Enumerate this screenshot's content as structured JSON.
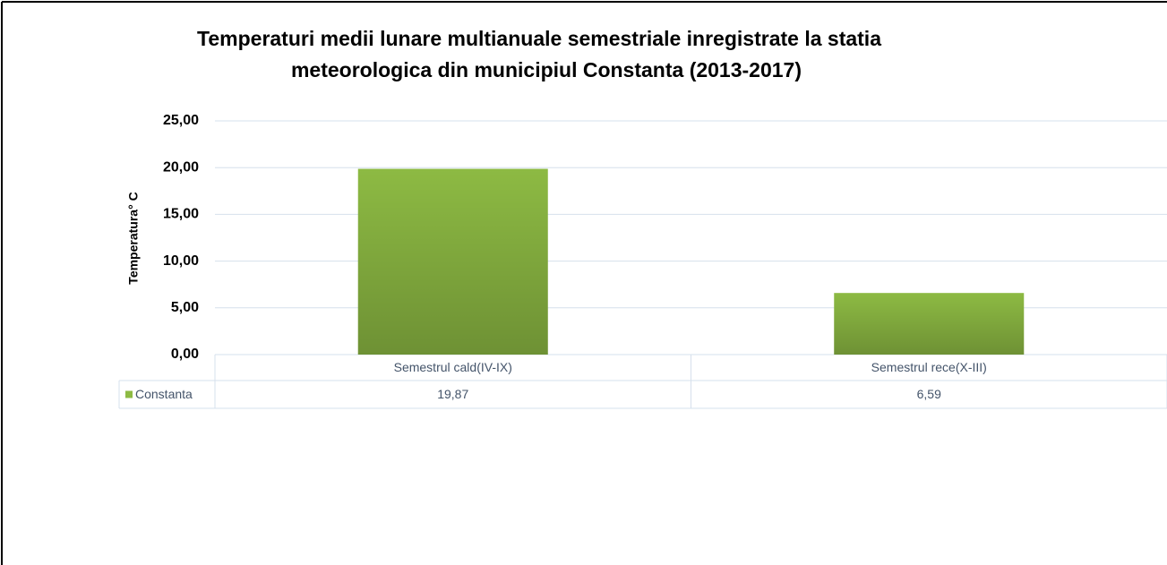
{
  "chart_data": {
    "type": "bar",
    "title": [
      "Temperaturi medii lunare multianuale semestriale inregistrate la statia",
      "meteorologica din municipiul Constanta (2013-2017)"
    ],
    "y_label": "Temperatura° C",
    "categories": [
      "Semestrul cald(IV-IX)",
      "Semestrul rece(X-III)"
    ],
    "series": [
      {
        "name": "Constanta",
        "color": "#8dba43",
        "values": [
          19.87,
          6.59
        ],
        "value_labels": [
          "19,87",
          "6,59"
        ]
      }
    ],
    "ylim": [
      0,
      25
    ],
    "yticks": [
      {
        "value": 0,
        "label": "0,00"
      },
      {
        "value": 5,
        "label": "5,00"
      },
      {
        "value": 10,
        "label": "10,00"
      },
      {
        "value": 15,
        "label": "15,00"
      },
      {
        "value": 20,
        "label": "20,00"
      },
      {
        "value": 25,
        "label": "25,00"
      }
    ],
    "grid": true
  }
}
